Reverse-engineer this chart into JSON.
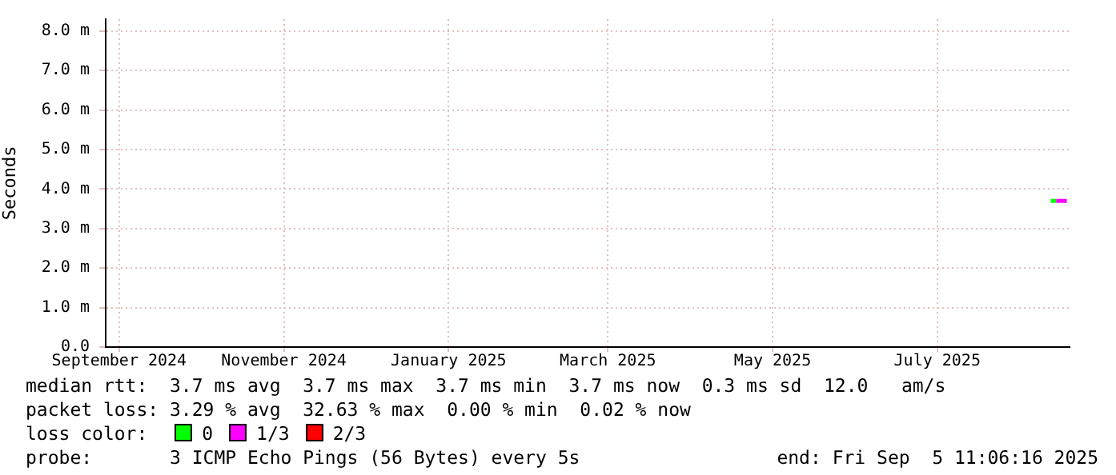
{
  "chart_data": {
    "type": "line",
    "ylabel": "Seconds",
    "legend_title": "loss color:",
    "xlim": [
      "2024-08-27",
      "2025-08-19"
    ],
    "xticks": [
      {
        "value": "2024-09-01",
        "label": "September 2024"
      },
      {
        "value": "2024-11-01",
        "label": "November 2024"
      },
      {
        "value": "2025-01-01",
        "label": "January 2025"
      },
      {
        "value": "2025-03-01",
        "label": "March 2025"
      },
      {
        "value": "2025-05-01",
        "label": "May 2025"
      },
      {
        "value": "2025-07-01",
        "label": "July 2025"
      }
    ],
    "ylim": [
      0,
      8.3
    ],
    "yticks": [
      {
        "value": 0,
        "label": "0.0"
      },
      {
        "value": 1,
        "label": "1.0 m"
      },
      {
        "value": 2,
        "label": "2.0 m"
      },
      {
        "value": 3,
        "label": "3.0 m"
      },
      {
        "value": 4,
        "label": "4.0 m"
      },
      {
        "value": 5,
        "label": "5.0 m"
      },
      {
        "value": 6,
        "label": "6.0 m"
      },
      {
        "value": 7,
        "label": "7.0 m"
      },
      {
        "value": 8,
        "label": "8.0 m"
      }
    ],
    "series": [
      {
        "name": "0",
        "color": "#00ff00",
        "x": [
          "2025-08-12",
          "2025-08-14"
        ],
        "values": [
          3.7,
          3.7
        ]
      },
      {
        "name": "1/3",
        "color": "#ff00ff",
        "x": [
          "2025-08-14",
          "2025-08-18"
        ],
        "values": [
          3.7,
          3.7
        ]
      },
      {
        "name": "2/3",
        "color": "#ff0000"
      }
    ],
    "grid": true,
    "legend": "bottom",
    "marker": "none",
    "annotations": [
      "median rtt:  3.7 ms avg  3.7 ms max  3.7 ms min  3.7 ms now  0.3 ms sd  12.0   am/s",
      "packet loss: 3.29 % avg  32.63 % max  0.00 % min  0.02 % now",
      "probe:       3 ICMP Echo Pings (56 Bytes) every 5s",
      "end: Fri Sep  5 11:06:16 2025"
    ]
  }
}
